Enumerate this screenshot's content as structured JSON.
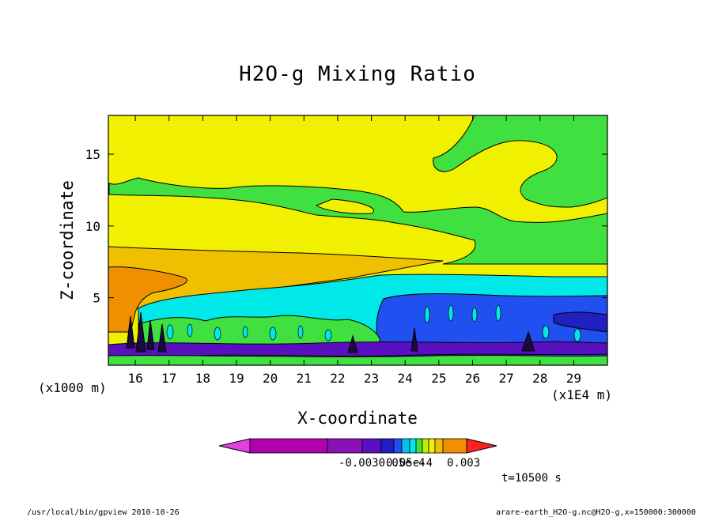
{
  "chart_data": {
    "type": "heatmap",
    "title": "H2O-g Mixing Ratio",
    "xlabel": "X-coordinate",
    "ylabel": "Z-coordinate",
    "x_unit_left": "(x1000 m)",
    "x_unit_right": "(x1E4 m)",
    "xlim": [
      15.2,
      30.0
    ],
    "ylim": [
      0.3,
      17.7
    ],
    "xticks": [
      "16",
      "17",
      "18",
      "19",
      "20",
      "21",
      "22",
      "23",
      "24",
      "25",
      "26",
      "27",
      "28",
      "29"
    ],
    "yticks": [
      "5",
      "10",
      "15"
    ],
    "time_label": "t=10500 s",
    "colorbar": {
      "labels": [
        "-0.003",
        "0.05e-4",
        "0.003"
      ],
      "label_text_overlap": "-0.0030.05e-4",
      "colors": [
        "#e040e0",
        "#b000b0",
        "#8a10b8",
        "#5a10c0",
        "#2020c0",
        "#2050f0",
        "#00c0f0",
        "#00e8e8",
        "#40e040",
        "#c0f000",
        "#f0f000",
        "#f0c000",
        "#f09000",
        "#ff2020"
      ]
    },
    "footer_left": "/usr/local/bin/gpview  2010-10-26",
    "footer_right": "arare-earth_H2O-g.nc@H2O-g,x=150000:300000"
  }
}
